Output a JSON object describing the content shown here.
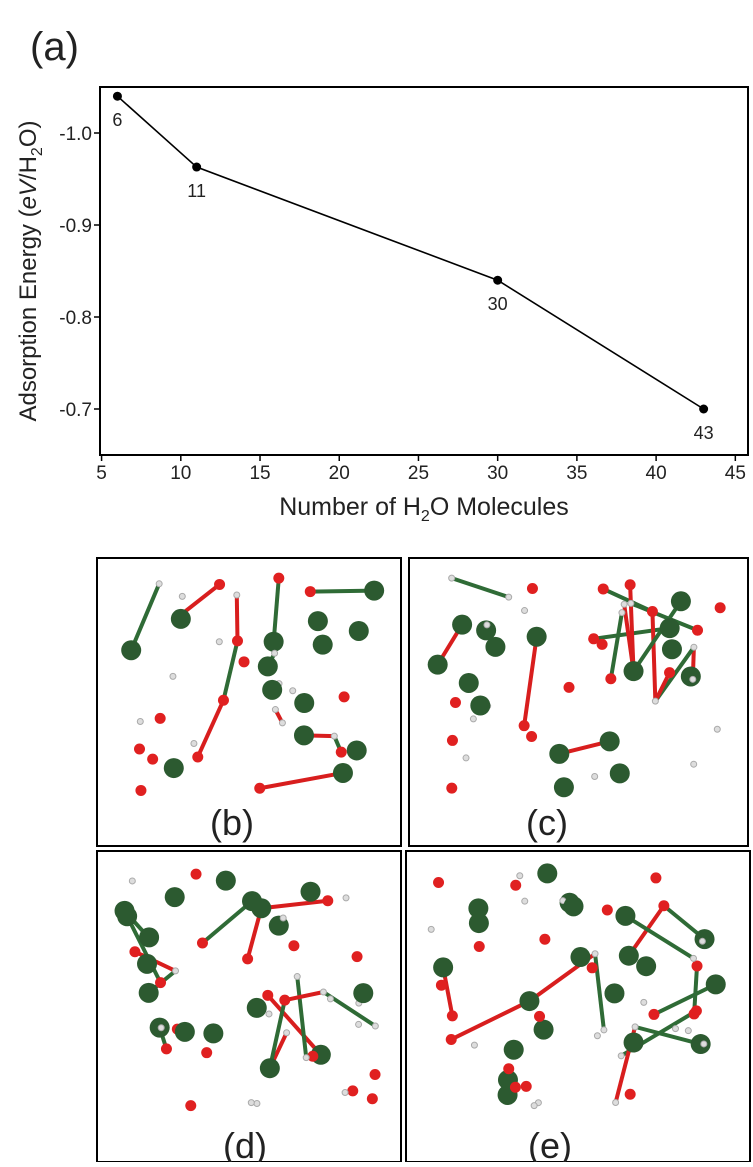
{
  "panel_label": "(a)",
  "chart_data": {
    "type": "line",
    "xlabel": [
      "Number of H",
      "2",
      "O Molecules"
    ],
    "ylabel": [
      "Adsorption Energy (",
      "eV",
      "/H",
      "2",
      "O)"
    ],
    "x": [
      6,
      11,
      30,
      43
    ],
    "series": [
      {
        "color": "#000000",
        "values": [
          -1.04,
          -0.963,
          -0.84,
          -0.7
        ]
      }
    ],
    "xlim": [
      4.9,
      45.8
    ],
    "xticks": [
      5,
      10,
      15,
      20,
      25,
      30,
      35,
      40,
      45
    ],
    "ylim": [
      -0.65,
      -1.05
    ],
    "yticks": [
      {
        "value": -1,
        "label": "-1.0"
      },
      -0.9,
      -0.8,
      {
        "value": -0.7,
        "label": "-0.7"
      }
    ]
  },
  "panels": [
    "(b)",
    "(c)",
    "(d)",
    "(e)"
  ]
}
